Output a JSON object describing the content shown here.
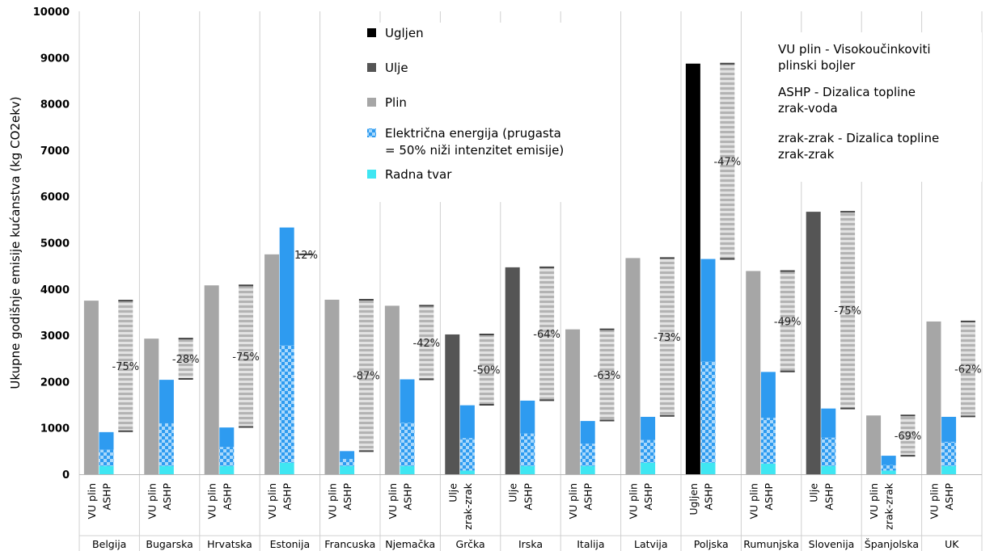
{
  "chart_data": {
    "type": "bar",
    "title": "",
    "ylabel": "Ukupne godišnje emisije kućanstva (kg CO2ekv)",
    "ylim": [
      0,
      10000
    ],
    "yticks": [
      0,
      1000,
      2000,
      3000,
      4000,
      5000,
      6000,
      7000,
      8000,
      9000,
      10000
    ],
    "grid": "vertical-separators",
    "legend": [
      {
        "name": "Ugljen",
        "color": "#000000"
      },
      {
        "name": "Ulje",
        "color": "#555555"
      },
      {
        "name": "Plin",
        "color": "#a6a6a6"
      },
      {
        "name": "Električna energija (prugasta = 50% niži intenzitet emisije)",
        "color": "#2e9bf0",
        "lines": [
          "Električna energija (prugasta",
          "= 50% niži intenzitet emisije)"
        ]
      },
      {
        "name": "Radna tvar",
        "color": "#3fe6f2"
      }
    ],
    "notes": [
      [
        "VU plin - Visokoučinkoviti",
        "plinski bojler"
      ],
      [
        "ASHP - Dizalica topline",
        "zrak-voda"
      ],
      [
        "zrak-zrak - Dizalica topline",
        "zrak-zrak"
      ]
    ],
    "groups": [
      {
        "country": "Belgija",
        "fuel_label": "VU plin",
        "fuel": "Plin",
        "fuel_value": 3750,
        "hp_label": "ASHP",
        "refrigerant": 180,
        "elec_low": 350,
        "elec_high": 380,
        "change": "-75%",
        "change_low": 930
      },
      {
        "country": "Bugarska",
        "fuel_label": "VU plin",
        "fuel": "Plin",
        "fuel_value": 2930,
        "hp_label": "ASHP",
        "refrigerant": 180,
        "elec_low": 920,
        "elec_high": 940,
        "change": "-28%",
        "change_low": 2060
      },
      {
        "country": "Hrvatska",
        "fuel_label": "VU plin",
        "fuel": "Plin",
        "fuel_value": 4080,
        "hp_label": "ASHP",
        "refrigerant": 180,
        "elec_low": 410,
        "elec_high": 420,
        "change": "-75%",
        "change_low": 1020
      },
      {
        "country": "Estonija",
        "fuel_label": "VU plin",
        "fuel": "Plin",
        "fuel_value": 4750,
        "hp_label": "ASHP",
        "refrigerant": 250,
        "elec_low": 2530,
        "elec_high": 2550,
        "change": "12%",
        "change_low": 4750
      },
      {
        "country": "Francuska",
        "fuel_label": "VU plin",
        "fuel": "Plin",
        "fuel_value": 3770,
        "hp_label": "ASHP",
        "refrigerant": 180,
        "elec_low": 150,
        "elec_high": 170,
        "change": "-87%",
        "change_low": 500
      },
      {
        "country": "Njemačka",
        "fuel_label": "VU plin",
        "fuel": "Plin",
        "fuel_value": 3640,
        "hp_label": "ASHP",
        "refrigerant": 180,
        "elec_low": 930,
        "elec_high": 940,
        "change": "-42%",
        "change_low": 2050
      },
      {
        "country": "Grčka",
        "fuel_label": "Ulje",
        "fuel": "Ulje",
        "fuel_value": 3020,
        "hp_label": "zrak-zrak",
        "refrigerant": 80,
        "elec_low": 700,
        "elec_high": 710,
        "change": "-50%",
        "change_low": 1500
      },
      {
        "country": "Irska",
        "fuel_label": "Ulje",
        "fuel": "Ulje",
        "fuel_value": 4470,
        "hp_label": "ASHP",
        "refrigerant": 180,
        "elec_low": 700,
        "elec_high": 710,
        "change": "-64%",
        "change_low": 1600
      },
      {
        "country": "Italija",
        "fuel_label": "VU plin",
        "fuel": "Plin",
        "fuel_value": 3130,
        "hp_label": "ASHP",
        "refrigerant": 180,
        "elec_low": 480,
        "elec_high": 490,
        "change": "-63%",
        "change_low": 1160
      },
      {
        "country": "Latvija",
        "fuel_label": "VU plin",
        "fuel": "Plin",
        "fuel_value": 4670,
        "hp_label": "ASHP",
        "refrigerant": 250,
        "elec_low": 490,
        "elec_high": 500,
        "change": "-73%",
        "change_low": 1260
      },
      {
        "country": "Poljska",
        "fuel_label": "Ugljen",
        "fuel": "Ugljen",
        "fuel_value": 8870,
        "hp_label": "ASHP",
        "refrigerant": 250,
        "elec_low": 2180,
        "elec_high": 2220,
        "change": "-47%",
        "change_low": 4650
      },
      {
        "country": "Rumunjska",
        "fuel_label": "VU plin",
        "fuel": "Plin",
        "fuel_value": 4390,
        "hp_label": "ASHP",
        "refrigerant": 230,
        "elec_low": 990,
        "elec_high": 990,
        "change": "-49%",
        "change_low": 2220
      },
      {
        "country": "Slovenija",
        "fuel_label": "Ulje",
        "fuel": "Ulje",
        "fuel_value": 5670,
        "hp_label": "ASHP",
        "refrigerant": 180,
        "elec_low": 610,
        "elec_high": 630,
        "change": "-75%",
        "change_low": 1420
      },
      {
        "country": "Španjolska",
        "fuel_label": "VU plin",
        "fuel": "Plin",
        "fuel_value": 1270,
        "hp_label": "zrak-zrak",
        "refrigerant": 80,
        "elec_low": 120,
        "elec_high": 200,
        "change": "-69%",
        "change_low": 400
      },
      {
        "country": "UK",
        "fuel_label": "VU plin",
        "fuel": "Plin",
        "fuel_value": 3300,
        "hp_label": "ASHP",
        "refrigerant": 180,
        "elec_low": 520,
        "elec_high": 540,
        "change": "-62%",
        "change_low": 1250
      }
    ]
  }
}
